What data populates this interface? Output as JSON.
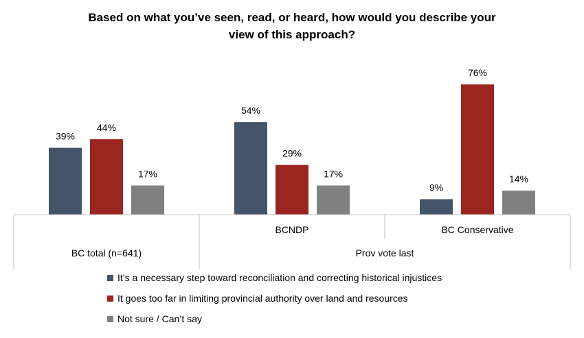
{
  "chart_data": {
    "type": "bar",
    "title_lines": [
      "Based on what you’ve seen, read, or heard, how would you describe your",
      "view of this approach?"
    ],
    "categories": [
      "BC total (n=641)",
      "BCNDP",
      "BC Conservative"
    ],
    "category_group": {
      "label": "Prov vote last",
      "members": [
        "BCNDP",
        "BC Conservative"
      ]
    },
    "series": [
      {
        "name": "It’s a necessary step toward reconciliation and correcting historical injustices",
        "color": "#44546A",
        "values": [
          39,
          54,
          9
        ]
      },
      {
        "name": "It goes too far in limiting provincial authority over land and resources",
        "color": "#9B2520",
        "values": [
          44,
          29,
          76
        ]
      },
      {
        "name": "Not sure / Can’t say",
        "color": "#808080",
        "values": [
          17,
          17,
          14
        ]
      }
    ],
    "value_suffix": "%",
    "ylim": [
      0,
      80
    ],
    "grid": false,
    "legend_position": "bottom-center"
  }
}
